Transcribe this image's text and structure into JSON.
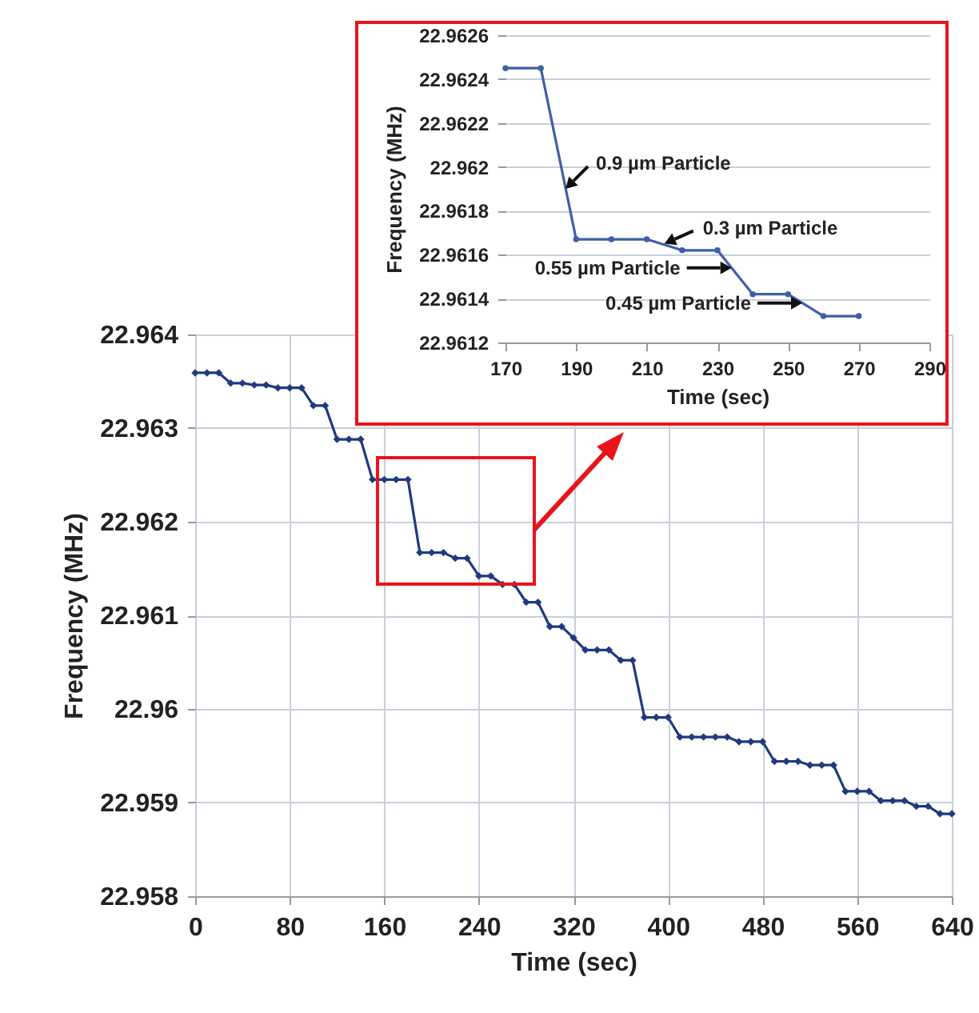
{
  "chart_data": [
    {
      "type": "line",
      "xlabel": "Time (sec)",
      "ylabel": "Frequency (MHz)",
      "x": [
        0,
        10,
        20,
        30,
        40,
        50,
        60,
        70,
        80,
        90,
        100,
        110,
        120,
        130,
        140,
        150,
        160,
        170,
        180,
        190,
        200,
        210,
        220,
        230,
        240,
        250,
        260,
        270,
        280,
        290,
        300,
        310,
        320,
        330,
        340,
        350,
        360,
        370,
        380,
        390,
        400,
        410,
        420,
        430,
        440,
        450,
        460,
        470,
        480,
        490,
        500,
        510,
        520,
        530,
        540,
        550,
        560,
        570,
        580,
        590,
        600,
        610,
        620,
        630,
        640
      ],
      "series": [
        {
          "color": "#1f3a80",
          "values": [
            22.96359,
            22.96359,
            22.96359,
            22.96348,
            22.96348,
            22.96346,
            22.96346,
            22.96343,
            22.96343,
            22.96343,
            22.96324,
            22.96324,
            22.96288,
            22.96288,
            22.96288,
            22.96245,
            22.96245,
            22.96245,
            22.96245,
            22.96167,
            22.96167,
            22.96167,
            22.96161,
            22.96161,
            22.96142,
            22.96142,
            22.96133,
            22.96133,
            22.96114,
            22.96114,
            22.96088,
            22.96088,
            22.96076,
            22.96063,
            22.96063,
            22.96063,
            22.96052,
            22.96052,
            22.95991,
            22.95991,
            22.95991,
            22.9597,
            22.9597,
            22.9597,
            22.9597,
            22.9597,
            22.95965,
            22.95965,
            22.95965,
            22.95944,
            22.95944,
            22.95944,
            22.9594,
            22.9594,
            22.9594,
            22.95912,
            22.95912,
            22.95912,
            22.95902,
            22.95902,
            22.95902,
            22.95896,
            22.95896,
            22.95888,
            22.95888
          ]
        }
      ],
      "xlim": [
        0,
        640
      ],
      "xticks": [
        0,
        80,
        160,
        240,
        320,
        400,
        480,
        560,
        640
      ],
      "ylim": [
        22.958,
        22.964
      ],
      "yticks": [
        22.958,
        22.959,
        22.96,
        22.961,
        22.962,
        22.963,
        22.964
      ],
      "grid": true,
      "marker": "diamond"
    },
    {
      "type": "line",
      "xlabel": "Time (sec)",
      "ylabel": "Frequency (MHz)",
      "x": [
        170,
        180,
        190,
        200,
        210,
        220,
        230,
        240,
        250,
        260,
        270
      ],
      "series": [
        {
          "color": "#3f5fa8",
          "values": [
            22.96245,
            22.96245,
            22.96167,
            22.96167,
            22.96167,
            22.96162,
            22.96162,
            22.96142,
            22.96142,
            22.96132,
            22.96132
          ]
        }
      ],
      "xlim": [
        170,
        290
      ],
      "xticks": [
        170,
        190,
        210,
        230,
        250,
        270,
        290
      ],
      "ylim": [
        22.9612,
        22.9626
      ],
      "yticks": [
        22.9612,
        22.9614,
        22.9616,
        22.9618,
        22.962,
        22.9622,
        22.9624,
        22.9626
      ],
      "grid": "y",
      "marker": "circle",
      "annotations": [
        {
          "text": "0.9 µm Particle",
          "x": 187,
          "y": 22.9619
        },
        {
          "text": "0.3 µm Particle",
          "x": 215,
          "y": 22.96165
        },
        {
          "text": "0.55 µm Particle",
          "x": 234,
          "y": 22.96154
        },
        {
          "text": "0.45 µm Particle",
          "x": 254,
          "y": 22.96138
        }
      ]
    }
  ]
}
